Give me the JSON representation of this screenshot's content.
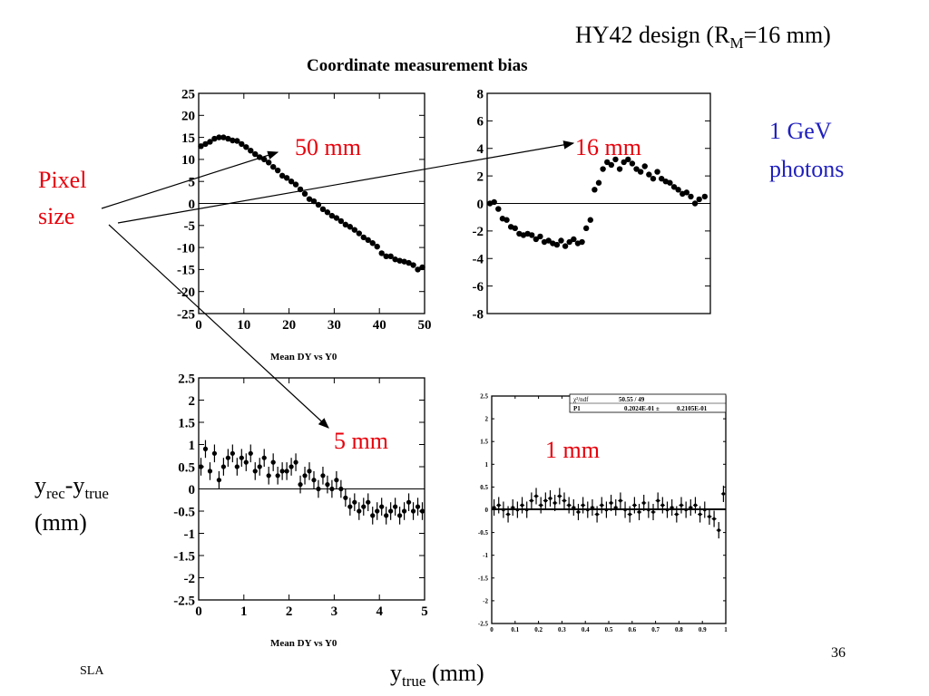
{
  "slide": {
    "title_main": "HY42 design (R",
    "title_sub": "M",
    "title_tail": "=16 mm)",
    "chart_title": "Coordinate measurement bias",
    "annotation_energy_1": "1 GeV",
    "annotation_energy_2": "photons",
    "pixel_label_1": "Pixel",
    "pixel_label_2": "size",
    "label_50mm": "50 mm",
    "label_16mm": "16 mm",
    "label_5mm": "5 mm",
    "label_1mm": "1 mm",
    "ylabel_main": "y",
    "ylabel_sub1": "rec",
    "ylabel_mid": "-y",
    "ylabel_sub2": "true",
    "ylabel_units": "(mm)",
    "xlabel_main": "y",
    "xlabel_sub": "true",
    "xlabel_units": " (mm)",
    "caption_1": "Mean DY vs Y0",
    "caption_2": "Mean DY vs Y0",
    "footer": "SLA",
    "page_number": "36",
    "colors": {
      "red": "#e8000b",
      "blue": "#1f1fbf"
    }
  },
  "chart_data": [
    {
      "type": "scatter",
      "name_label": "50 mm",
      "xlim": [
        0,
        50
      ],
      "ylim": [
        -25,
        25
      ],
      "xticks": [
        0,
        10,
        20,
        30,
        40,
        50
      ],
      "yticks": [
        -25,
        -20,
        -15,
        -10,
        -5,
        0,
        5,
        10,
        15,
        20,
        25
      ],
      "x": [
        0.5,
        1.5,
        2.5,
        3.5,
        4.5,
        5.5,
        6.5,
        7.5,
        8.5,
        9.5,
        10.5,
        11.5,
        12.5,
        13.5,
        14.5,
        15.5,
        16.5,
        17.5,
        18.5,
        19.5,
        20.5,
        21.5,
        22.5,
        23.5,
        24.5,
        25.5,
        26.5,
        27.5,
        28.5,
        29.5,
        30.5,
        31.5,
        32.5,
        33.5,
        34.5,
        35.5,
        36.5,
        37.5,
        38.5,
        39.5,
        40.5,
        41.5,
        42.5,
        43.5,
        44.5,
        45.5,
        46.5,
        47.5,
        48.5,
        49.5
      ],
      "y": [
        13,
        13.5,
        14,
        14.7,
        15,
        15,
        14.7,
        14.3,
        14.2,
        13.5,
        12.8,
        12,
        11.2,
        10.5,
        10,
        9.3,
        8.3,
        7.5,
        6.3,
        5.8,
        5,
        4.3,
        3.2,
        2.2,
        1,
        0.5,
        -0.3,
        -1.3,
        -2,
        -2.8,
        -3.3,
        -4,
        -4.8,
        -5.3,
        -6,
        -6.8,
        -7.7,
        -8.3,
        -9,
        -9.8,
        -11.3,
        -12,
        -12,
        -12.7,
        -13,
        -13.2,
        -13.5,
        -14,
        -15,
        -14.5
      ],
      "errors": false
    },
    {
      "type": "scatter",
      "name_label": "16 mm",
      "xlim": [
        0,
        16
      ],
      "ylim": [
        -8,
        8
      ],
      "xticks": [],
      "yticks": [
        -8,
        -6,
        -4,
        -2,
        0,
        2,
        4,
        6,
        8
      ],
      "x": [
        0.2,
        0.5,
        0.8,
        1.1,
        1.4,
        1.7,
        2.0,
        2.3,
        2.6,
        2.9,
        3.2,
        3.5,
        3.8,
        4.1,
        4.4,
        4.7,
        5.0,
        5.3,
        5.6,
        5.9,
        6.2,
        6.5,
        6.8,
        7.1,
        7.4,
        7.7,
        8.0,
        8.3,
        8.6,
        8.9,
        9.2,
        9.5,
        9.8,
        10.1,
        10.4,
        10.7,
        11.0,
        11.3,
        11.6,
        11.9,
        12.2,
        12.5,
        12.8,
        13.1,
        13.4,
        13.7,
        14.0,
        14.3,
        14.6,
        14.9,
        15.2,
        15.6
      ],
      "y": [
        0,
        0.1,
        -0.4,
        -1.1,
        -1.2,
        -1.7,
        -1.8,
        -2.2,
        -2.3,
        -2.2,
        -2.3,
        -2.6,
        -2.4,
        -2.8,
        -2.7,
        -2.9,
        -3,
        -2.7,
        -3.1,
        -2.8,
        -2.6,
        -2.9,
        -2.8,
        -1.8,
        -1.2,
        1,
        1.5,
        2.5,
        3,
        2.8,
        3.2,
        2.5,
        3,
        3.2,
        2.9,
        2.5,
        2.3,
        2.7,
        2.1,
        1.8,
        2.3,
        1.8,
        1.6,
        1.5,
        1.2,
        1,
        0.7,
        0.8,
        0.5,
        0,
        0.3,
        0.5
      ],
      "errors": false
    },
    {
      "type": "scatter",
      "name_label": "5 mm",
      "xlim": [
        0,
        5
      ],
      "ylim": [
        -2.5,
        2.5
      ],
      "xticks": [
        0,
        1,
        2,
        3,
        4,
        5
      ],
      "yticks": [
        -2.5,
        -2,
        -1.5,
        -1,
        -0.5,
        0,
        0.5,
        1,
        1.5,
        2,
        2.5
      ],
      "x": [
        0.05,
        0.15,
        0.25,
        0.35,
        0.45,
        0.55,
        0.65,
        0.75,
        0.85,
        0.95,
        1.05,
        1.15,
        1.25,
        1.35,
        1.45,
        1.55,
        1.65,
        1.75,
        1.85,
        1.95,
        2.05,
        2.15,
        2.25,
        2.35,
        2.45,
        2.55,
        2.65,
        2.75,
        2.85,
        2.95,
        3.05,
        3.15,
        3.25,
        3.35,
        3.45,
        3.55,
        3.65,
        3.75,
        3.85,
        3.95,
        4.05,
        4.15,
        4.25,
        4.35,
        4.45,
        4.55,
        4.65,
        4.75,
        4.85,
        4.95
      ],
      "y": [
        0.5,
        0.9,
        0.4,
        0.8,
        0.2,
        0.5,
        0.7,
        0.8,
        0.5,
        0.7,
        0.6,
        0.8,
        0.4,
        0.5,
        0.7,
        0.3,
        0.6,
        0.3,
        0.4,
        0.4,
        0.5,
        0.6,
        0.1,
        0.3,
        0.4,
        0.2,
        0.0,
        0.3,
        0.1,
        0.0,
        0.2,
        0.0,
        -0.2,
        -0.4,
        -0.3,
        -0.5,
        -0.4,
        -0.3,
        -0.6,
        -0.5,
        -0.4,
        -0.6,
        -0.5,
        -0.4,
        -0.6,
        -0.5,
        -0.3,
        -0.5,
        -0.4,
        -0.5
      ],
      "err": 0.2,
      "errors": true
    },
    {
      "type": "scatter",
      "name_label": "1 mm",
      "xlim": [
        0,
        1
      ],
      "ylim": [
        -2.5,
        2.5
      ],
      "xticks": [
        0,
        0.1,
        0.2,
        0.3,
        0.4,
        0.5,
        0.6,
        0.7,
        0.8,
        0.9,
        1
      ],
      "yticks": [
        -2.5,
        -2,
        -1.5,
        -1,
        -0.5,
        0,
        0.5,
        1,
        1.5,
        2,
        2.5
      ],
      "stats": {
        "row1_label": "χ²/ndf",
        "row1_value": "50.55  /  49",
        "row2_label": "P1",
        "row2_value": "0.2024E-01 ±",
        "row2_error": "0.2105E-01"
      },
      "fit_line": 0.02,
      "x": [
        0.01,
        0.03,
        0.05,
        0.07,
        0.09,
        0.11,
        0.13,
        0.15,
        0.17,
        0.19,
        0.21,
        0.23,
        0.25,
        0.27,
        0.29,
        0.31,
        0.33,
        0.35,
        0.37,
        0.39,
        0.41,
        0.43,
        0.45,
        0.47,
        0.49,
        0.51,
        0.53,
        0.55,
        0.57,
        0.59,
        0.61,
        0.63,
        0.65,
        0.67,
        0.69,
        0.71,
        0.73,
        0.75,
        0.77,
        0.79,
        0.81,
        0.83,
        0.85,
        0.87,
        0.89,
        0.91,
        0.93,
        0.95,
        0.97,
        0.99
      ],
      "y": [
        0.05,
        0.1,
        0.0,
        -0.1,
        0.05,
        0.0,
        0.1,
        0.0,
        0.2,
        0.3,
        0.1,
        0.2,
        0.25,
        0.15,
        0.3,
        0.2,
        0.1,
        0.05,
        -0.05,
        0.1,
        0.0,
        0.05,
        -0.1,
        0.1,
        0.0,
        0.15,
        0.05,
        0.2,
        0.0,
        -0.1,
        0.1,
        -0.05,
        0.15,
        0.0,
        -0.05,
        0.2,
        0.1,
        0.0,
        0.05,
        -0.1,
        0.1,
        0.0,
        0.05,
        0.1,
        -0.1,
        0.0,
        -0.15,
        -0.2,
        -0.45,
        0.35
      ],
      "err": 0.18,
      "errors": true
    }
  ]
}
